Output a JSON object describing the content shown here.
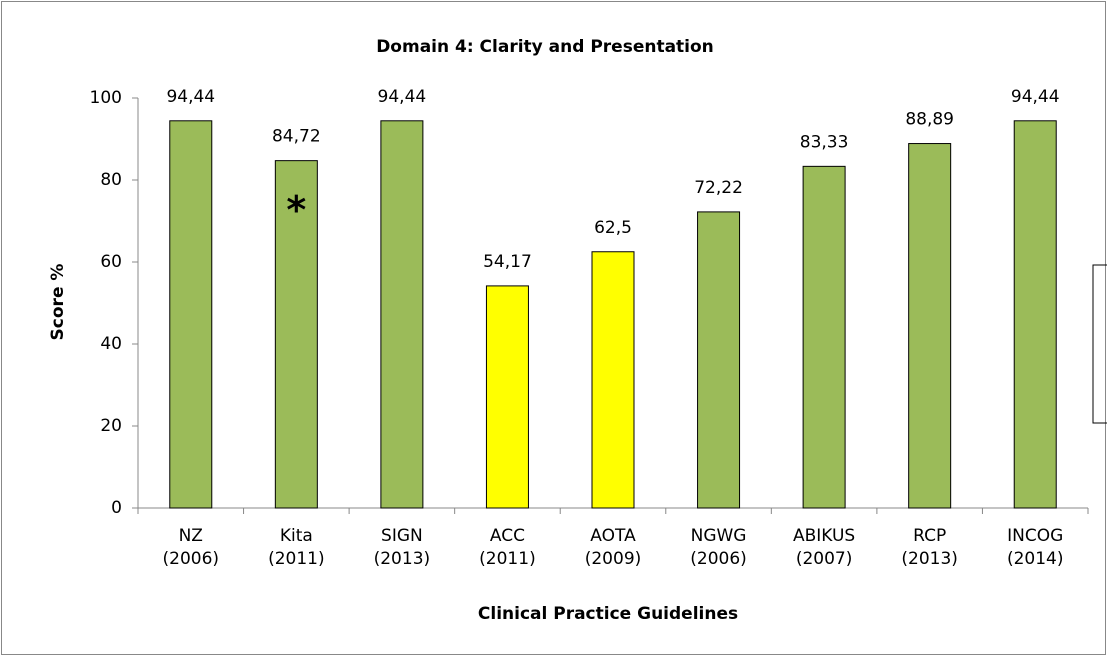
{
  "chart_data": {
    "type": "bar",
    "title": "Domain 4: Clarity and Presentation",
    "x_label": "Clinical Practice Guidelines",
    "y_label": "Score %",
    "categories": [
      [
        "NZ",
        "(2006)"
      ],
      [
        "Kita",
        "(2011)"
      ],
      [
        "SIGN",
        "(2013)"
      ],
      [
        "ACC",
        "(2011)"
      ],
      [
        "AOTA",
        "(2009)"
      ],
      [
        "NGWG",
        "(2006)"
      ],
      [
        "ABIKUS",
        "(2007)"
      ],
      [
        "RCP",
        "(2013)"
      ],
      [
        "INCOG",
        "(2014)"
      ]
    ],
    "values": [
      94.44,
      84.72,
      94.44,
      54.17,
      62.5,
      72.22,
      83.33,
      88.89,
      94.44
    ],
    "value_labels": [
      "94,44",
      "84,72",
      "94,44",
      "54,17",
      "62,5",
      "72,22",
      "83,33",
      "88,89",
      "94,44"
    ],
    "colors": [
      "#9bbb59",
      "#9bbb59",
      "#9bbb59",
      "#ffff00",
      "#ffff00",
      "#9bbb59",
      "#9bbb59",
      "#9bbb59",
      "#9bbb59"
    ],
    "annotations": [
      {
        "text": "*",
        "category": 1
      }
    ],
    "ylim": [
      0,
      100
    ],
    "yticks": [
      0,
      20,
      40,
      60,
      80,
      100
    ],
    "grid": false
  }
}
